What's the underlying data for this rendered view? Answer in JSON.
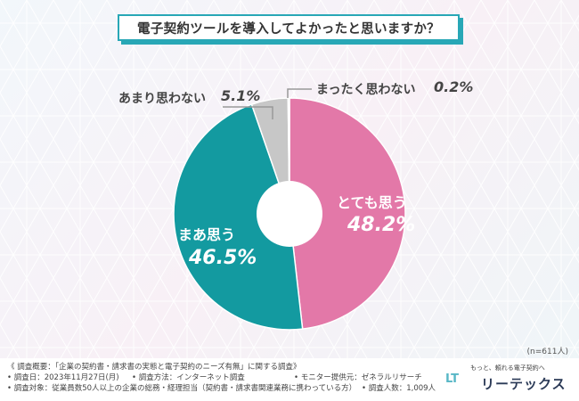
{
  "title": "電子契約ツールを導入してよかったと思いますか？",
  "sample_note": "(n=611人)",
  "chart_data": {
    "type": "pie",
    "title": "電子契約ツールを導入してよかったと思いますか？",
    "slices": [
      {
        "label": "とても思う",
        "value": 48.2,
        "value_text": "48.2%",
        "color": "#e378a8"
      },
      {
        "label": "まあ思う",
        "value": 46.5,
        "value_text": "46.5%",
        "color": "#139aa0"
      },
      {
        "label": "あまり思わない",
        "value": 5.1,
        "value_text": "5.1%",
        "color": "#c7c7c7"
      },
      {
        "label": "まったく思わない",
        "value": 0.2,
        "value_text": "0.2%",
        "color": "#a9a9a9"
      }
    ],
    "hole": true
  },
  "notes": {
    "line1": "《 調査概要：「企業の契約書・請求書の実態と電子契約のニーズ有無」に関する調査》",
    "date": "• 調査日：2023年11月27日(月)",
    "method": "• 調査方法：インターネット調査",
    "provider": "• モニター提供元：ゼネラルリサーチ",
    "target": "• 調査対象：従業員数50人以上の企業の総務・経理担当（契約書・請求書関連業務に携わっている方）",
    "count": "• 調査人数：1,009人"
  },
  "logo": {
    "tagline": "もっと、頼れる電子契約へ",
    "brand": "リーテックス",
    "mark": "LT"
  }
}
